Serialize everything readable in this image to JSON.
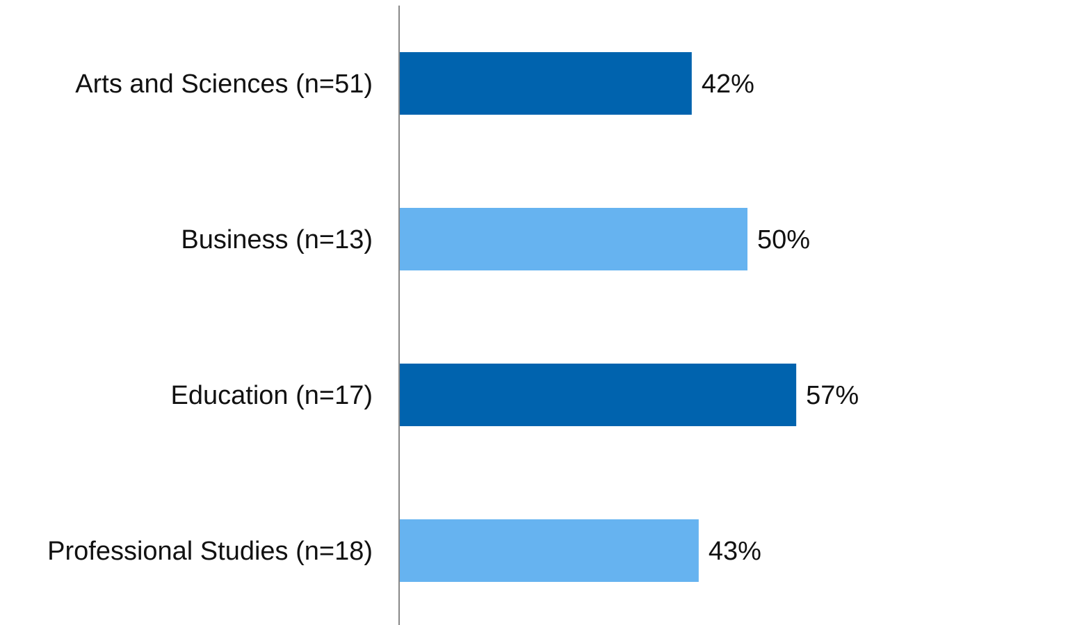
{
  "chart_data": {
    "type": "bar",
    "orientation": "horizontal",
    "categories": [
      "Arts and Sciences (n=51)",
      "Business (n=13)",
      "Education (n=17)",
      "Professional Studies (n=18)"
    ],
    "values": [
      42,
      50,
      57,
      43
    ],
    "value_labels": [
      "42%",
      "50%",
      "57%",
      "43%"
    ],
    "bar_colors": [
      "#0063ae",
      "#66b3f0",
      "#0063ae",
      "#66b3f0"
    ],
    "axis_color": "#888888",
    "title": "",
    "xlabel": "",
    "ylabel": "",
    "xlim": [
      0,
      100
    ],
    "grid": false,
    "legend": "none"
  }
}
